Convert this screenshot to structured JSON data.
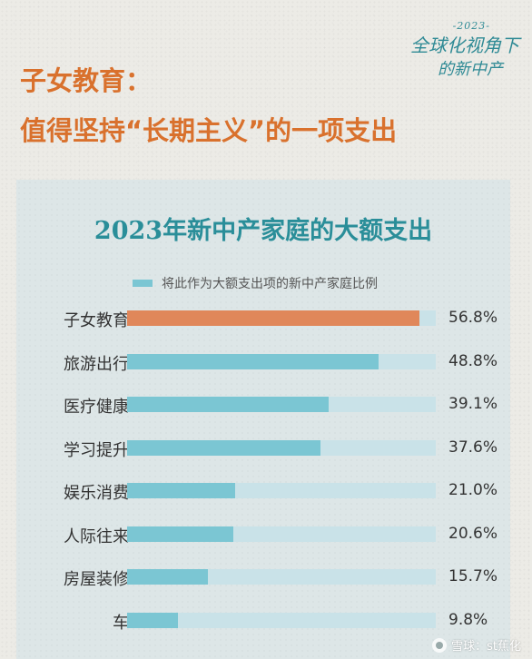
{
  "series_mark": {
    "year": "-2023-",
    "line1": "全球化视角下",
    "line2": "的新中产"
  },
  "headline": {
    "line1": "子女教育：",
    "line2": "值得坚持“长期主义”的一项支出"
  },
  "chart_data": {
    "type": "bar",
    "orientation": "horizontal",
    "title": "2023年新中产家庭的大额支出",
    "legend": "将此作为大额支出项的新中产家庭比例",
    "legend_position": "top",
    "unit": "%",
    "xlim": [
      0,
      60
    ],
    "categories": [
      "子女教育",
      "旅游出行",
      "医疗健康",
      "学习提升",
      "娱乐消费",
      "人际往来",
      "房屋装修",
      "车"
    ],
    "values": [
      56.8,
      48.8,
      39.1,
      37.6,
      21.0,
      20.6,
      15.7,
      9.8
    ],
    "value_labels": [
      "56.8%",
      "48.8%",
      "39.1%",
      "37.6%",
      "21.0%",
      "20.6%",
      "15.7%",
      "9.8%"
    ],
    "highlight_index": 0,
    "colors": {
      "highlight": "#e0875a",
      "bar": "#7bc6d3",
      "track": "#c9e2e8"
    }
  },
  "watermark": "雪球：st蕉化"
}
